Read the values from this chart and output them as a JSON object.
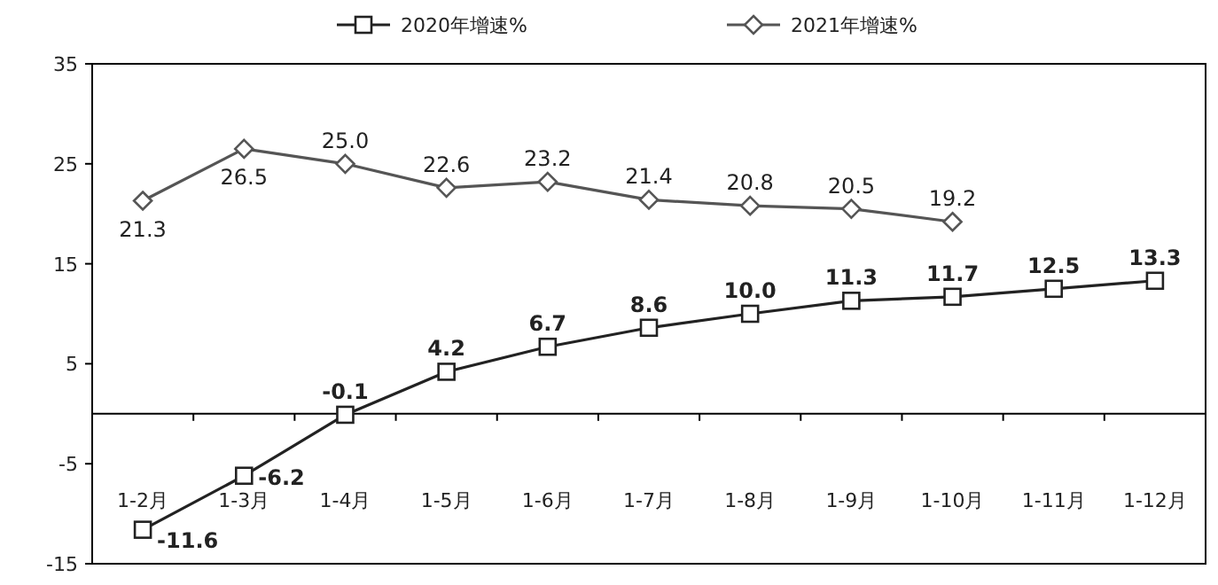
{
  "chart_data": {
    "type": "line",
    "categories": [
      "1-2月",
      "1-3月",
      "1-4月",
      "1-5月",
      "1-6月",
      "1-7月",
      "1-8月",
      "1-9月",
      "1-10月",
      "1-11月",
      "1-12月"
    ],
    "series": [
      {
        "name": "2020年增速%",
        "color": "#222222",
        "marker": "square",
        "values": [
          -11.6,
          -6.2,
          -0.1,
          4.2,
          6.7,
          8.6,
          10.0,
          11.3,
          11.7,
          12.5,
          13.3
        ],
        "value_labels": [
          "-11.6",
          "-6.2",
          "-0.1",
          "4.2",
          "6.7",
          "8.6",
          "10.0",
          "11.3",
          "11.7",
          "12.5",
          "13.3"
        ]
      },
      {
        "name": "2021年增速%",
        "color": "#555555",
        "marker": "diamond",
        "values": [
          21.3,
          26.5,
          25.0,
          22.6,
          23.2,
          21.4,
          20.8,
          20.5,
          19.2,
          null,
          null
        ],
        "value_labels": [
          "21.3",
          "26.5",
          "25.0",
          "22.6",
          "23.2",
          "21.4",
          "20.8",
          "20.5",
          "19.2",
          null,
          null
        ]
      }
    ],
    "ylim": [
      -15,
      35
    ],
    "yticks": [
      -15,
      -5,
      5,
      15,
      25,
      35
    ],
    "ref_lines": [
      {
        "axis": "y",
        "value": 0,
        "color": "#000000"
      }
    ],
    "legend": "top",
    "grid": false,
    "line_style": "solid"
  }
}
